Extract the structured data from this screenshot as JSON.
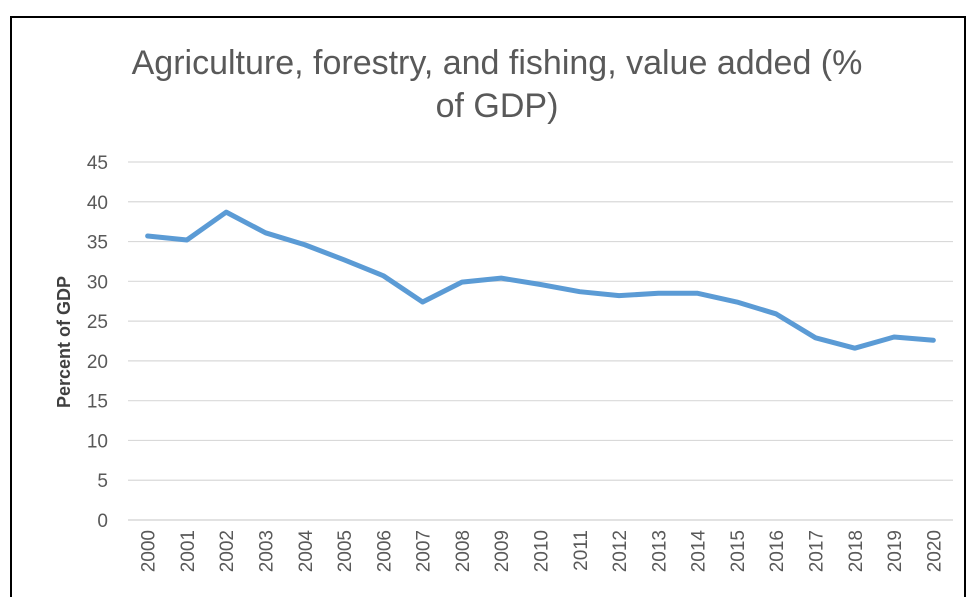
{
  "chart_data": {
    "type": "line",
    "title_lines": [
      "Agriculture, forestry, and fishing, value added (%",
      "of GDP)"
    ],
    "xlabel": "",
    "ylabel": "Percent of GDP",
    "x": [
      "2000",
      "2001",
      "2002",
      "2003",
      "2004",
      "2005",
      "2006",
      "2007",
      "2008",
      "2009",
      "2010",
      "2011",
      "2012",
      "2013",
      "2014",
      "2015",
      "2016",
      "2017",
      "2018",
      "2019",
      "2020"
    ],
    "series": [
      {
        "values": [
          35.7,
          35.2,
          38.7,
          36.1,
          34.6,
          32.7,
          30.7,
          27.4,
          29.9,
          30.4,
          29.6,
          28.7,
          28.2,
          28.5,
          28.5,
          27.4,
          25.9,
          22.9,
          21.6,
          23.0,
          22.6
        ],
        "color": "#5b9bd5"
      }
    ],
    "ylim": [
      0,
      45
    ],
    "yticks": [
      "0",
      "5",
      "10",
      "15",
      "20",
      "25",
      "30",
      "35",
      "40",
      "45"
    ],
    "grid": true,
    "legend": "none",
    "colors": {
      "grid": "#d9d9d9",
      "text": "#595959",
      "line": "#5b9bd5"
    }
  }
}
